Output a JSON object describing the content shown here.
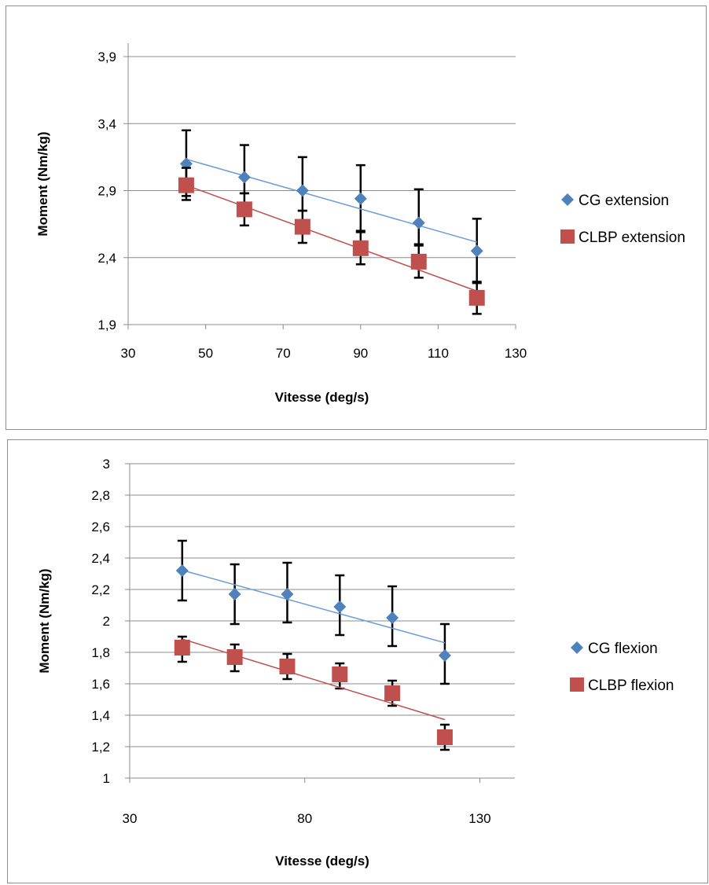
{
  "colors": {
    "cg": "#4f81bd",
    "cg_trend": "#6b9bd8",
    "clbp": "#c0504d",
    "clbp_trend": "#c0504d",
    "error_bar": "#000000",
    "gridline": "#8c8c8c",
    "axis": "#8c8c8c",
    "border": "#8c8c8c"
  },
  "chart_data": [
    {
      "type": "scatter",
      "title": "",
      "xlabel": "Vitesse (deg/s)",
      "ylabel": "Moment (Nm/kg)",
      "xlim": [
        30,
        130
      ],
      "ylim": [
        1.9,
        4.0
      ],
      "x_ticks": [
        30,
        50,
        70,
        90,
        110,
        130
      ],
      "x_tick_labels": [
        "30",
        "50",
        "70",
        "90",
        "110",
        "130"
      ],
      "y_ticks": [
        1.9,
        2.4,
        2.9,
        3.4,
        3.9
      ],
      "y_tick_labels": [
        "1,9",
        "2,4",
        "2,9",
        "3,4",
        "3,9"
      ],
      "grid": "horizontal",
      "legend_position": "right",
      "trendlines": "linear",
      "error_bars": true,
      "series": [
        {
          "name": "CG extension",
          "marker": "diamond",
          "color_key": "cg",
          "x": [
            45,
            60,
            75,
            90,
            105,
            120
          ],
          "y": [
            3.1,
            3.0,
            2.9,
            2.84,
            2.66,
            2.45
          ],
          "err_plus": [
            0.25,
            0.24,
            0.25,
            0.25,
            0.25,
            0.24
          ],
          "err_minus": [
            0.24,
            0.12,
            0.15,
            0.24,
            0.16,
            0.24
          ]
        },
        {
          "name": "CLBP extension",
          "marker": "square",
          "color_key": "clbp",
          "x": [
            45,
            60,
            75,
            90,
            105,
            120
          ],
          "y": [
            2.94,
            2.76,
            2.63,
            2.47,
            2.37,
            2.1
          ],
          "err_plus": [
            0.13,
            0.12,
            0.12,
            0.12,
            0.12,
            0.12
          ],
          "err_minus": [
            0.11,
            0.12,
            0.12,
            0.12,
            0.12,
            0.12
          ]
        }
      ]
    },
    {
      "type": "scatter",
      "title": "",
      "xlabel": "Vitesse (deg/s)",
      "ylabel": "Moment  (Nm/kg)",
      "xlim": [
        30,
        140
      ],
      "ylim": [
        1,
        3
      ],
      "x_ticks": [
        30,
        80,
        130
      ],
      "x_tick_labels": [
        "30",
        "80",
        "130"
      ],
      "y_ticks": [
        1,
        1.2,
        1.4,
        1.6,
        1.8,
        2,
        2.2,
        2.4,
        2.6,
        2.8,
        3
      ],
      "y_tick_labels": [
        "1",
        "1,2",
        "1,4",
        "1,6",
        "1,8",
        "2",
        "2,2",
        "2,4",
        "2,6",
        "2,8",
        "3"
      ],
      "grid": "horizontal",
      "legend_position": "right",
      "trendlines": "linear",
      "error_bars": true,
      "series": [
        {
          "name": "CG flexion",
          "marker": "diamond",
          "color_key": "cg",
          "x": [
            45,
            60,
            75,
            90,
            105,
            120
          ],
          "y": [
            2.32,
            2.17,
            2.17,
            2.09,
            2.02,
            1.78
          ],
          "err_plus": [
            0.19,
            0.19,
            0.2,
            0.2,
            0.2,
            0.2
          ],
          "err_minus": [
            0.19,
            0.19,
            0.18,
            0.18,
            0.18,
            0.18
          ]
        },
        {
          "name": "CLBP flexion",
          "marker": "square",
          "color_key": "clbp",
          "x": [
            45,
            60,
            75,
            90,
            105,
            120
          ],
          "y": [
            1.83,
            1.77,
            1.71,
            1.66,
            1.54,
            1.26
          ],
          "err_plus": [
            0.07,
            0.08,
            0.08,
            0.07,
            0.08,
            0.08
          ],
          "err_minus": [
            0.09,
            0.09,
            0.08,
            0.09,
            0.08,
            0.08
          ]
        }
      ]
    }
  ]
}
